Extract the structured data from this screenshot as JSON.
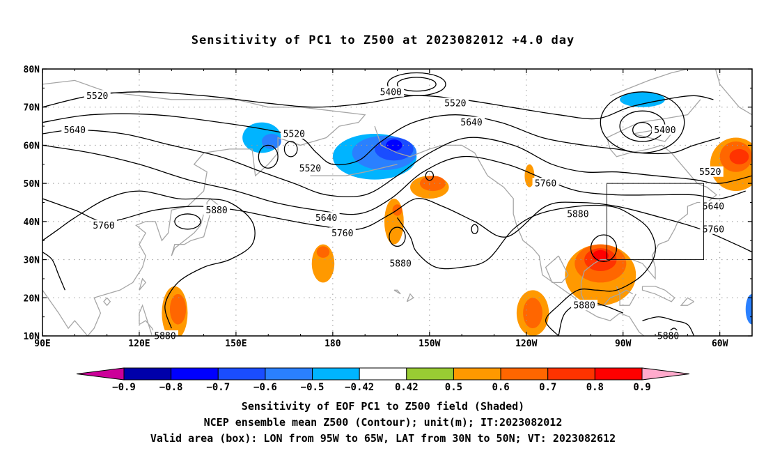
{
  "title": "Sensitivity of PC1 to Z500 at 2023082012 +4.0 day",
  "map": {
    "lat_labels": [
      "80N",
      "70N",
      "60N",
      "50N",
      "40N",
      "30N",
      "20N",
      "10N"
    ],
    "lon_labels": [
      "90E",
      "120E",
      "150E",
      "180",
      "150W",
      "120W",
      "90W",
      "60W"
    ],
    "lon_range": [
      90,
      310
    ],
    "lat_range": [
      10,
      80
    ],
    "grid": "dotted",
    "valid_box": {
      "lon": [
        265,
        295
      ],
      "lat": [
        30,
        50
      ]
    },
    "contour_labels": [
      {
        "text": "5400",
        "lon": 198,
        "lat": 74
      },
      {
        "text": "5400",
        "lon": 283,
        "lat": 64
      },
      {
        "text": "5520",
        "lon": 107,
        "lat": 73
      },
      {
        "text": "5520",
        "lon": 168,
        "lat": 63
      },
      {
        "text": "5520",
        "lon": 218,
        "lat": 71
      },
      {
        "text": "5520",
        "lon": 173,
        "lat": 54
      },
      {
        "text": "5520",
        "lon": 297,
        "lat": 53
      },
      {
        "text": "5640",
        "lon": 100,
        "lat": 64
      },
      {
        "text": "5640",
        "lon": 223,
        "lat": 66
      },
      {
        "text": "5640",
        "lon": 178,
        "lat": 41
      },
      {
        "text": "5640",
        "lon": 298,
        "lat": 44
      },
      {
        "text": "5760",
        "lon": 109,
        "lat": 39
      },
      {
        "text": "5760",
        "lon": 183,
        "lat": 37
      },
      {
        "text": "5760",
        "lon": 246,
        "lat": 50
      },
      {
        "text": "5760",
        "lon": 298,
        "lat": 38
      },
      {
        "text": "5880",
        "lon": 144,
        "lat": 43
      },
      {
        "text": "5880",
        "lon": 201,
        "lat": 29
      },
      {
        "text": "5880",
        "lon": 256,
        "lat": 42
      },
      {
        "text": "5880",
        "lon": 258,
        "lat": 18
      },
      {
        "text": "5880",
        "lon": 128,
        "lat": 10
      },
      {
        "text": "5880",
        "lon": 284,
        "lat": 10
      }
    ],
    "shaded_regions": [
      {
        "level": -0.5,
        "lon": 158,
        "lat": 62,
        "rx": 6,
        "ry": 4
      },
      {
        "level": -0.6,
        "lon": 161,
        "lat": 61,
        "rx": 3,
        "ry": 2
      },
      {
        "level": -0.5,
        "lon": 193,
        "lat": 57,
        "rx": 13,
        "ry": 6
      },
      {
        "level": -0.6,
        "lon": 196,
        "lat": 58,
        "rx": 10,
        "ry": 4.5
      },
      {
        "level": -0.7,
        "lon": 199,
        "lat": 59,
        "rx": 6,
        "ry": 3
      },
      {
        "level": -0.8,
        "lon": 199,
        "lat": 60,
        "rx": 2.5,
        "ry": 1.5
      },
      {
        "level": -0.5,
        "lon": 276,
        "lat": 72,
        "rx": 7,
        "ry": 2
      },
      {
        "level": -0.6,
        "lon": 310,
        "lat": 17,
        "rx": 2,
        "ry": 4
      },
      {
        "level": 0.5,
        "lon": 210,
        "lat": 49,
        "rx": 6,
        "ry": 3
      },
      {
        "level": 0.6,
        "lon": 211,
        "lat": 50,
        "rx": 4,
        "ry": 2
      },
      {
        "level": 0.5,
        "lon": 199,
        "lat": 40,
        "rx": 3,
        "ry": 6
      },
      {
        "level": 0.6,
        "lon": 200,
        "lat": 43,
        "rx": 1.5,
        "ry": 1.5
      },
      {
        "level": 0.5,
        "lon": 177,
        "lat": 29,
        "rx": 3.5,
        "ry": 5
      },
      {
        "level": 0.6,
        "lon": 177,
        "lat": 32,
        "rx": 2,
        "ry": 1.5
      },
      {
        "level": 0.5,
        "lon": 131,
        "lat": 16,
        "rx": 4,
        "ry": 7
      },
      {
        "level": 0.6,
        "lon": 132,
        "lat": 17,
        "rx": 2.5,
        "ry": 4
      },
      {
        "level": 0.5,
        "lon": 241,
        "lat": 52,
        "rx": 1.5,
        "ry": 3
      },
      {
        "level": 0.5,
        "lon": 263,
        "lat": 26,
        "rx": 11,
        "ry": 8
      },
      {
        "level": 0.6,
        "lon": 263,
        "lat": 29,
        "rx": 8,
        "ry": 5
      },
      {
        "level": 0.7,
        "lon": 263,
        "lat": 30,
        "rx": 5,
        "ry": 3
      },
      {
        "level": 0.8,
        "lon": 263,
        "lat": 31,
        "rx": 2.5,
        "ry": 1.5
      },
      {
        "level": 0.5,
        "lon": 242,
        "lat": 16,
        "rx": 5,
        "ry": 6
      },
      {
        "level": 0.6,
        "lon": 242,
        "lat": 16,
        "rx": 3,
        "ry": 4
      },
      {
        "level": 0.5,
        "lon": 305,
        "lat": 55,
        "rx": 8,
        "ry": 7
      },
      {
        "level": 0.6,
        "lon": 305,
        "lat": 57,
        "rx": 5,
        "ry": 4
      },
      {
        "level": 0.7,
        "lon": 306,
        "lat": 57,
        "rx": 3,
        "ry": 2
      }
    ]
  },
  "colorbar": {
    "levels": [
      "-0.9",
      "-0.8",
      "-0.7",
      "-0.6",
      "-0.5",
      "-0.42",
      "0.42",
      "0.5",
      "0.6",
      "0.7",
      "0.8",
      "0.9"
    ],
    "colors": [
      "#0000aa",
      "#0000ff",
      "#1a4dff",
      "#2a80ff",
      "#00b4ff",
      "#ffffff",
      "#99cc33",
      "#ff9900",
      "#ff6600",
      "#ff3300",
      "#ff0000"
    ],
    "low_end_color": "#cc0099",
    "high_end_color": "#ffaacc"
  },
  "colors": {
    "coastline": "#a6a6a6",
    "contour": "#000000",
    "grid": "#999999"
  },
  "caption": {
    "line1": "Sensitivity of EOF PC1 to Z500 field (Shaded)",
    "line2": "NCEP ensemble mean Z500 (Contour); unit(m); IT:2023082012",
    "line3": "Valid area (box): LON from 95W to 65W, LAT from 30N to 50N; VT: 2023082612"
  }
}
